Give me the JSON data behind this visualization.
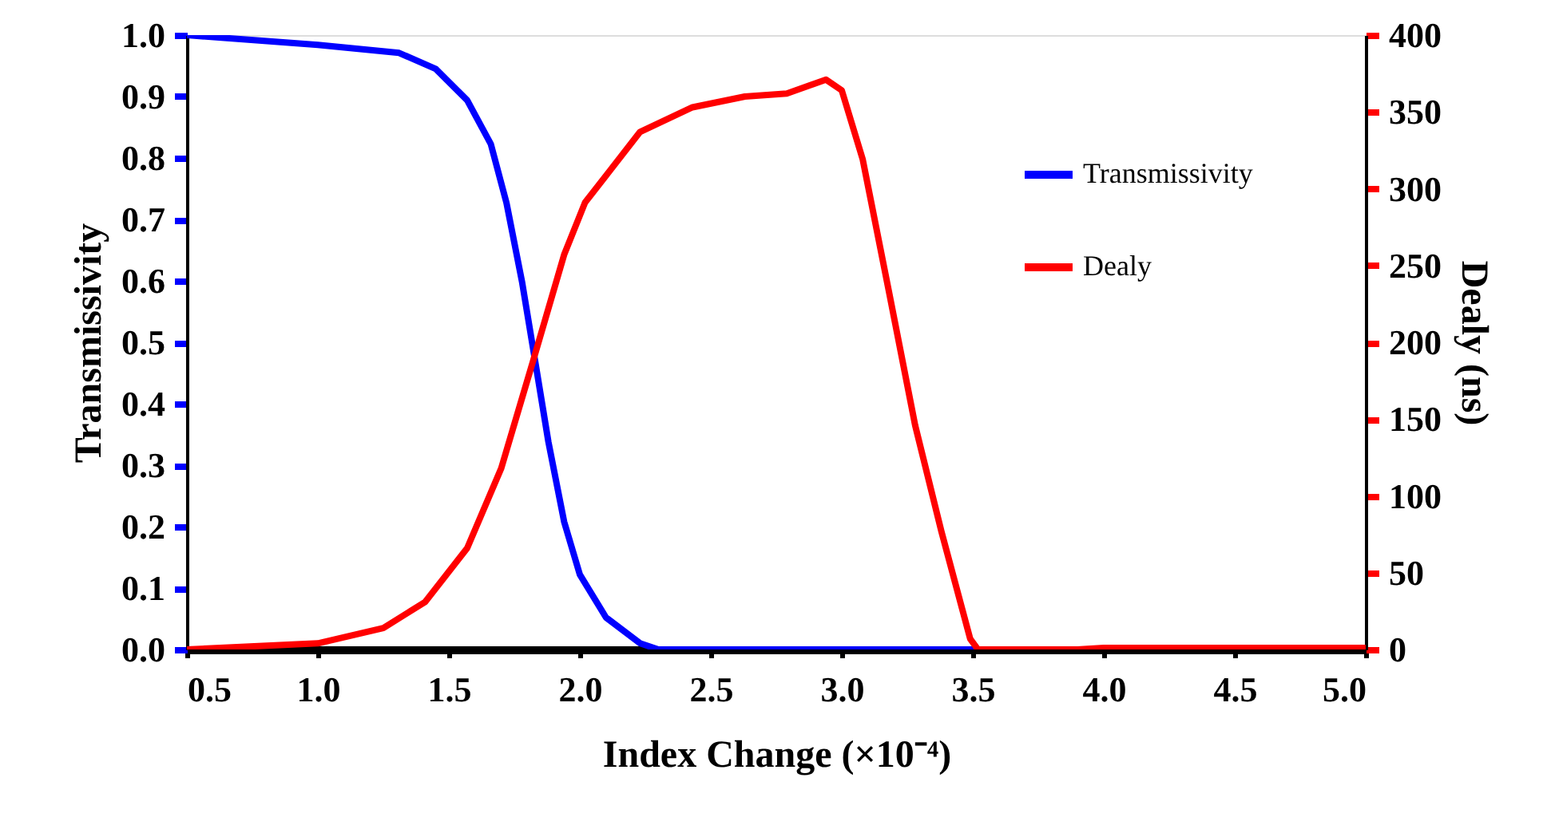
{
  "chart_data": {
    "type": "line",
    "xlabel": "Index Change (×10⁻⁴)",
    "ylabel": "Transmissivity",
    "y2label": "Dealy (ns)",
    "xlim": [
      0.5,
      5.0
    ],
    "ylim": [
      0,
      1
    ],
    "y2lim": [
      0,
      400
    ],
    "xticks": [
      0.5,
      {
        "value": 1,
        "label": "1.0"
      },
      1.5,
      {
        "value": 2,
        "label": "2.0"
      },
      2.5,
      {
        "value": 3,
        "label": "3.0"
      },
      3.5,
      {
        "value": 4,
        "label": "4.0"
      },
      4.5,
      {
        "value": 5,
        "label": "5.0"
      }
    ],
    "yticks": [
      {
        "value": 0,
        "label": "0.0"
      },
      0.1,
      0.2,
      0.3,
      0.4,
      0.5,
      0.6,
      0.7,
      0.8,
      0.9,
      {
        "value": 1,
        "label": "1.0"
      }
    ],
    "y2ticks": [
      0,
      50,
      100,
      150,
      200,
      250,
      300,
      350,
      400
    ],
    "grid": false,
    "legend": "top right",
    "marker": "none",
    "line_style": "solid",
    "series": [
      {
        "name": "Transmissivity",
        "color": "#0000ff",
        "axis": "y",
        "x": [
          0.5,
          1.0,
          1.31,
          1.45,
          1.57,
          1.66,
          1.72,
          1.78,
          1.83,
          1.88,
          1.94,
          2.0,
          2.1,
          2.23,
          2.3,
          3.0,
          4.0,
          5.0
        ],
        "values": [
          1.0,
          0.984,
          0.971,
          0.945,
          0.894,
          0.823,
          0.727,
          0.597,
          0.468,
          0.338,
          0.208,
          0.122,
          0.052,
          0.01,
          0,
          0,
          0,
          0
        ]
      },
      {
        "name": "Dealy",
        "color": "#ff0000",
        "axis": "y2",
        "x": [
          0.5,
          1.0,
          1.25,
          1.41,
          1.57,
          1.7,
          1.82,
          1.94,
          2.02,
          2.23,
          2.43,
          2.63,
          2.79,
          2.94,
          3.0,
          3.08,
          3.18,
          3.28,
          3.38,
          3.49,
          3.52,
          3.9,
          4.0,
          5.0
        ],
        "values": [
          0,
          4,
          14,
          31,
          66,
          118,
          187,
          257,
          291,
          337,
          353,
          360,
          362,
          371,
          364,
          319,
          233,
          146,
          77,
          7,
          0,
          0,
          1,
          1
        ]
      }
    ]
  }
}
